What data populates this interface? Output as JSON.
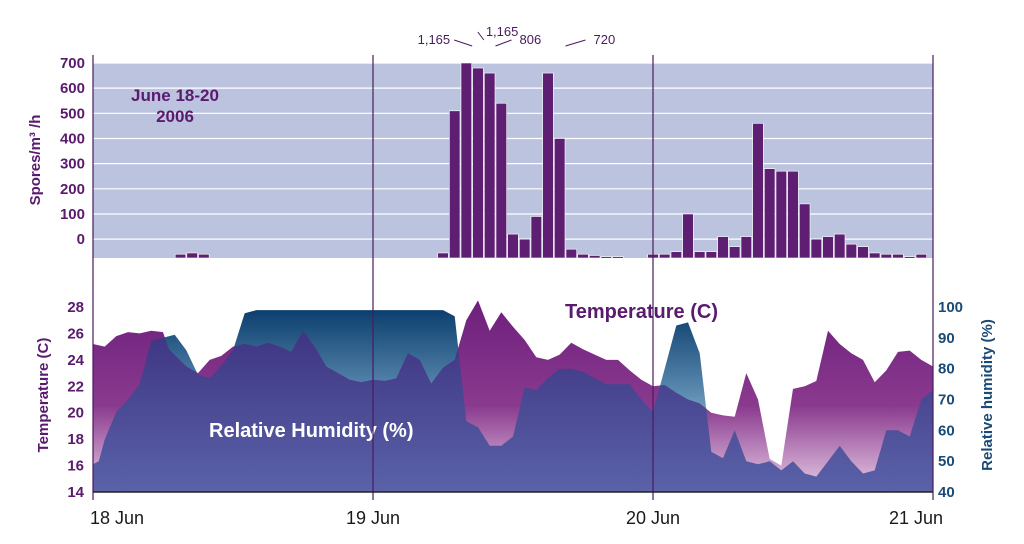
{
  "chart_data": [
    {
      "type": "bar",
      "title": "June 18-20",
      "subtitle": "2006",
      "ylabel": "Spores/m³ /h",
      "ylim": [
        -75,
        700
      ],
      "yticks": [
        0,
        100,
        200,
        300,
        400,
        500,
        600,
        700
      ],
      "xlim_hours": [
        0,
        72
      ],
      "bar_hours": [
        7.5,
        8.5,
        9.5,
        30.0,
        31.0,
        32.0,
        33.0,
        34.0,
        35.0,
        36.0,
        37.0,
        38.0,
        39.0,
        40.0,
        41.0,
        42.0,
        43.0,
        44.0,
        45.0,
        48.0,
        49.0,
        50.0,
        51.0,
        52.0,
        53.0,
        54.0,
        55.0,
        56.0,
        57.0,
        58.0,
        59.0,
        60.0,
        61.0,
        62.0,
        63.0,
        64.0,
        65.0,
        66.0,
        67.0,
        68.0,
        69.0,
        70.0,
        71.0
      ],
      "values": [
        -60,
        -55,
        -60,
        -55,
        510,
        700,
        680,
        660,
        540,
        20,
        0,
        90,
        660,
        400,
        -40,
        -60,
        -65,
        -70,
        -70,
        -60,
        -60,
        -50,
        100,
        -50,
        -50,
        10,
        -30,
        10,
        460,
        280,
        270,
        270,
        140,
        0,
        10,
        20,
        -20,
        -30,
        -55,
        -60,
        -60,
        -70,
        -60
      ],
      "annotations": [
        {
          "label": "1,165",
          "hour": 32.5
        },
        {
          "label": "1,165",
          "hour": 33.5
        },
        {
          "label": "806",
          "hour": 34.5
        },
        {
          "label": "720",
          "hour": 40.5
        }
      ]
    },
    {
      "type": "area",
      "series": [
        {
          "name": "Temperature (C)",
          "axis": "left",
          "ylabel": "Temperature (C)",
          "ylim": [
            14,
            28
          ],
          "yticks": [
            14,
            16,
            18,
            20,
            22,
            24,
            26,
            28
          ],
          "hours": [
            0,
            1,
            2,
            3,
            4,
            5,
            6,
            6.5,
            8,
            9,
            10,
            11,
            12,
            13,
            14,
            15,
            16,
            17,
            18,
            19,
            20,
            21,
            22,
            23,
            24,
            25,
            26,
            27,
            28,
            29,
            30,
            31,
            32,
            33,
            34,
            35,
            36,
            37,
            38,
            39,
            40,
            41,
            42,
            43,
            44,
            45,
            46,
            47,
            48,
            49,
            50,
            51,
            52,
            53,
            54,
            55,
            56,
            57,
            58,
            59,
            60,
            61,
            62,
            63,
            64,
            65,
            66,
            67,
            68,
            69,
            70,
            71,
            72
          ],
          "values": [
            25.2,
            25.0,
            25.8,
            26.1,
            26.0,
            26.2,
            26.1,
            24.8,
            23.5,
            23.0,
            24.0,
            24.3,
            25.0,
            25.2,
            25.0,
            25.3,
            25.0,
            24.6,
            26.2,
            25.0,
            23.5,
            23.0,
            22.5,
            22.3,
            22.5,
            22.4,
            22.6,
            24.5,
            24.0,
            22.2,
            23.4,
            24.0,
            27.0,
            28.5,
            26.2,
            27.6,
            26.5,
            25.5,
            24.2,
            24.0,
            24.4,
            25.3,
            24.8,
            24.4,
            24.0,
            24.0,
            23.2,
            22.5,
            22.0,
            22.1,
            21.5,
            21.0,
            20.7,
            20.0,
            19.8,
            19.7,
            23.0,
            21.0,
            16.5,
            16.0,
            21.8,
            22.0,
            22.4,
            26.2,
            25.2,
            24.5,
            24.0,
            22.3,
            23.2,
            24.6,
            24.7,
            24.0,
            23.5
          ]
        },
        {
          "name": "Relative Humidity (%)",
          "axis": "right",
          "ylabel": "Relative humidity (%)",
          "ylim": [
            40,
            100
          ],
          "yticks": [
            40,
            50,
            60,
            70,
            80,
            90,
            100
          ],
          "hours": [
            0,
            0.5,
            1,
            2,
            3,
            4,
            5,
            6,
            7,
            8,
            9,
            10,
            11,
            12,
            13,
            14,
            15,
            16,
            17,
            18,
            19,
            20,
            21,
            22,
            23,
            24,
            25,
            26,
            27,
            28,
            29,
            30,
            31,
            32,
            33,
            34,
            35,
            36,
            37,
            38,
            39,
            40,
            41,
            42,
            43,
            44,
            45,
            46,
            47,
            48,
            49,
            50,
            51,
            52,
            53,
            54,
            55,
            56,
            57,
            58,
            59,
            60,
            61,
            62,
            63,
            64,
            65,
            66,
            67,
            68,
            69,
            70,
            71,
            72
          ],
          "values": [
            49,
            50,
            57,
            66,
            70,
            75,
            89,
            90,
            91,
            86,
            78,
            77,
            81,
            86,
            98,
            99,
            99,
            99,
            99,
            99,
            99,
            99,
            99,
            99,
            99,
            99,
            99,
            99,
            99,
            99,
            99,
            99,
            97,
            63,
            61,
            55,
            55,
            58,
            74,
            73,
            77,
            80,
            80,
            79,
            77,
            75,
            75,
            75,
            70,
            66,
            80,
            94,
            95,
            85,
            53,
            51,
            60,
            50,
            49,
            50,
            47,
            50,
            46,
            45,
            50,
            55,
            50,
            46,
            47,
            60,
            60,
            58,
            70,
            73
          ]
        }
      ],
      "x_ticks": [
        {
          "label": "18 Jun",
          "hour": 0
        },
        {
          "label": "19 Jun",
          "hour": 24
        },
        {
          "label": "20 Jun",
          "hour": 48
        },
        {
          "label": "21 Jun",
          "hour": 72
        }
      ]
    }
  ]
}
